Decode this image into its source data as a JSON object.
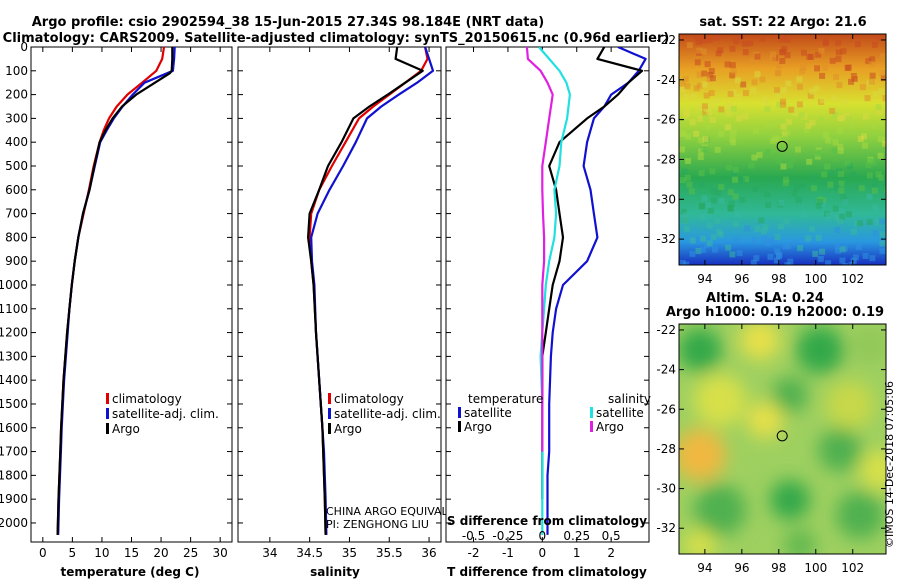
{
  "title_lines": [
    "Argo profile: csio 2902594_38 15-Jun-2015 27.34S 98.184E (NRT data)",
    "Climatology: CARS2009. Satellite-adjusted climatology: synTS_20150615.nc (0.96d earlier)"
  ],
  "colors": {
    "climatology": "#e00000",
    "satellite": "#1010d0",
    "argo": "#000000",
    "cyan": "#20e0e0",
    "magenta": "#e020e0"
  },
  "chart_data": [
    {
      "id": "temperature",
      "type": "line",
      "xlabel": "temperature (deg C)",
      "ylabel": "",
      "xlim": [
        -2,
        32
      ],
      "ylim": [
        2080,
        0
      ],
      "xticks": [
        0,
        5,
        10,
        15,
        20,
        25,
        30
      ],
      "yticks": [
        0,
        100,
        200,
        300,
        400,
        500,
        600,
        700,
        800,
        900,
        1000,
        1100,
        1200,
        1300,
        1400,
        1500,
        1600,
        1700,
        1800,
        1900,
        2000
      ],
      "legend": [
        "climatology",
        "satellite-adj. clim.",
        "Argo"
      ],
      "series": [
        {
          "name": "climatology",
          "color": "climatology",
          "x": [
            20.5,
            20.2,
            19.2,
            16.8,
            14.3,
            12.5,
            11.2,
            10.3,
            9.6,
            8.6,
            7.8,
            6.9,
            6.0,
            5.4,
            4.9,
            4.5,
            4.1,
            3.8,
            3.5,
            3.3,
            3.1,
            2.95,
            2.8,
            2.65,
            2.5
          ],
          "y": [
            0,
            50,
            100,
            150,
            200,
            250,
            300,
            350,
            400,
            500,
            600,
            700,
            800,
            900,
            1000,
            1100,
            1200,
            1300,
            1400,
            1500,
            1600,
            1700,
            1800,
            1900,
            2050
          ]
        },
        {
          "name": "satellite-adj. clim.",
          "color": "satellite",
          "x": [
            22.3,
            22.2,
            22.0,
            17.2,
            15.2,
            13.5,
            12.0,
            10.8,
            9.7,
            8.8,
            7.9,
            6.8,
            6.0,
            5.4,
            4.9,
            4.5,
            4.2,
            3.9,
            3.6,
            3.4,
            3.2,
            3.05,
            2.9,
            2.75,
            2.6
          ],
          "y": [
            0,
            50,
            100,
            150,
            200,
            250,
            300,
            350,
            400,
            500,
            600,
            700,
            800,
            900,
            1000,
            1100,
            1200,
            1300,
            1400,
            1500,
            1600,
            1700,
            1800,
            1900,
            2050
          ]
        },
        {
          "name": "Argo",
          "color": "argo",
          "x": [
            21.9,
            21.9,
            21.8,
            21.5,
            15.8,
            13.4,
            11.8,
            10.6,
            9.6,
            8.7,
            7.9,
            6.8,
            6.0,
            5.4,
            4.9,
            4.5,
            4.1,
            3.8,
            3.5,
            3.3,
            3.1,
            2.95,
            2.8,
            2.65,
            2.5
          ],
          "y": [
            0,
            50,
            100,
            110,
            200,
            250,
            300,
            350,
            400,
            500,
            600,
            700,
            800,
            900,
            1000,
            1100,
            1200,
            1300,
            1400,
            1500,
            1600,
            1700,
            1800,
            1900,
            2050
          ]
        }
      ]
    },
    {
      "id": "salinity",
      "type": "line",
      "xlabel": "salinity",
      "ylabel": "",
      "xlim": [
        33.6,
        36.15
      ],
      "ylim": [
        2080,
        0
      ],
      "xticks": [
        34,
        34.5,
        35,
        35.5,
        36
      ],
      "xticklabels": [
        "34",
        "34.5",
        "35",
        "35.5",
        "36"
      ],
      "legend": [
        "climatology",
        "satellite-adj. clim.",
        "Argo"
      ],
      "footnote_lines": [
        "CHINA ARGO EQUIVALENT",
        "PI: ZENGHONG LIU"
      ],
      "series": [
        {
          "name": "climatology",
          "color": "climatology",
          "x": [
            35.95,
            35.98,
            35.9,
            35.7,
            35.5,
            35.3,
            35.12,
            34.95,
            34.78,
            34.62,
            34.52,
            34.5,
            34.52,
            34.55,
            34.58,
            34.6,
            34.62,
            34.64,
            34.66,
            34.67,
            34.68,
            34.69,
            34.7
          ],
          "y": [
            0,
            50,
            100,
            150,
            200,
            250,
            300,
            400,
            500,
            600,
            700,
            800,
            900,
            1000,
            1200,
            1300,
            1400,
            1500,
            1600,
            1700,
            1800,
            1900,
            2050
          ]
        },
        {
          "name": "satellite-adj. clim.",
          "color": "satellite",
          "x": [
            35.95,
            36.0,
            36.05,
            35.85,
            35.62,
            35.4,
            35.22,
            35.08,
            34.92,
            34.75,
            34.6,
            34.52,
            34.53,
            34.56,
            34.58,
            34.6,
            34.62,
            34.64,
            34.66,
            34.68,
            34.69,
            34.7,
            34.71
          ],
          "y": [
            0,
            50,
            100,
            150,
            200,
            250,
            300,
            400,
            500,
            600,
            700,
            800,
            900,
            1000,
            1200,
            1300,
            1400,
            1500,
            1600,
            1700,
            1800,
            1900,
            2050
          ]
        },
        {
          "name": "Argo",
          "color": "argo",
          "x": [
            35.6,
            35.58,
            35.92,
            35.7,
            35.48,
            35.25,
            35.05,
            34.9,
            34.73,
            34.62,
            34.5,
            34.48,
            34.52,
            34.55,
            34.58,
            34.6,
            34.62,
            34.64,
            34.66,
            34.67,
            34.68,
            34.69,
            34.7
          ],
          "y": [
            0,
            50,
            100,
            150,
            200,
            250,
            300,
            400,
            500,
            600,
            700,
            800,
            900,
            1000,
            1200,
            1300,
            1400,
            1500,
            1600,
            1700,
            1800,
            1900,
            2050
          ]
        }
      ]
    },
    {
      "id": "difference",
      "type": "line",
      "xlabel": "T difference from climatology",
      "x2label": "S difference from climatology",
      "xlim": [
        -2.8,
        3.1
      ],
      "ylim": [
        2080,
        0
      ],
      "xticks": [
        -2,
        -1,
        0,
        1,
        2
      ],
      "x2ticks": [
        -0.5,
        -0.25,
        0,
        0.25,
        0.5
      ],
      "x2ticklabels": [
        "-0.5",
        "-0.25",
        "0",
        "0.25",
        "0.5"
      ],
      "legend_left_title": "temperature",
      "legend_right_title": "salinity",
      "legend_left": [
        "satellite",
        "Argo"
      ],
      "legend_right": [
        "satellite",
        "Argo"
      ],
      "series": [
        {
          "name": "T satellite",
          "color": "satellite",
          "x": [
            2.2,
            3.0,
            2.8,
            2.5,
            2.0,
            1.8,
            1.5,
            1.3,
            1.2,
            1.4,
            1.5,
            1.6,
            1.3,
            0.6,
            0.4,
            0.3,
            0.25,
            0.2,
            0.2,
            0.2,
            0.15,
            0.15,
            0.15
          ],
          "y": [
            0,
            50,
            100,
            150,
            200,
            250,
            300,
            400,
            500,
            600,
            700,
            800,
            900,
            1000,
            1100,
            1200,
            1300,
            1500,
            1600,
            1700,
            1800,
            1900,
            2050
          ]
        },
        {
          "name": "T Argo",
          "color": "argo",
          "x": [
            1.8,
            1.6,
            2.9,
            2.5,
            2.2,
            1.8,
            1.3,
            0.5,
            0.2,
            0.4,
            0.5,
            0.6,
            0.5,
            0.3,
            0.2,
            0.1,
            0.0,
            0.0,
            0.0,
            0.0,
            0.0,
            0.0
          ],
          "y": [
            0,
            50,
            100,
            150,
            200,
            250,
            300,
            400,
            500,
            600,
            700,
            800,
            900,
            1000,
            1100,
            1200,
            1300,
            1500,
            1600,
            1700,
            1800,
            1900
          ]
        },
        {
          "name": "S satellite",
          "color": "cyan",
          "x": [
            -0.1,
            0.2,
            0.5,
            0.7,
            0.8,
            0.72,
            0.55,
            0.5,
            0.35,
            0.4,
            0.35,
            0.2,
            0.1,
            0.05,
            0.0,
            -0.05,
            0.0,
            0.0,
            0.0,
            0.0
          ],
          "y": [
            0,
            50,
            100,
            150,
            200,
            300,
            400,
            500,
            600,
            700,
            800,
            900,
            1000,
            1100,
            1200,
            1300,
            1500,
            1600,
            1700,
            2050
          ]
        },
        {
          "name": "S Argo",
          "color": "magenta",
          "x": [
            -0.45,
            -0.42,
            -0.05,
            0.15,
            0.3,
            0.2,
            0.1,
            0.0,
            0.0,
            0.02,
            0.05,
            0.05,
            0.0,
            0.0,
            0.0,
            0.0,
            0.0,
            0.0
          ],
          "y": [
            0,
            50,
            100,
            150,
            200,
            300,
            400,
            500,
            600,
            700,
            800,
            900,
            1000,
            1100,
            1200,
            1300,
            1500,
            1700
          ]
        }
      ]
    },
    {
      "id": "sst_map",
      "type": "heatmap",
      "title": "sat. SST: 22 Argo: 21.6",
      "xticks": [
        94,
        96,
        98,
        100,
        102
      ],
      "yticks": [
        -22,
        -24,
        -26,
        -28,
        -30,
        -32
      ],
      "xlim": [
        92.6,
        103.8
      ],
      "ylim": [
        -33.3,
        -21.7
      ],
      "marker": {
        "lon": 98.184,
        "lat": -27.34
      }
    },
    {
      "id": "sla_map",
      "type": "heatmap",
      "title_lines": [
        "Altim. SLA: 0.24",
        "Argo h1000: 0.19 h2000: 0.19"
      ],
      "xticks": [
        94,
        96,
        98,
        100,
        102
      ],
      "yticks": [
        -22,
        -24,
        -26,
        -28,
        -30,
        -32
      ],
      "xlim": [
        92.6,
        103.8
      ],
      "ylim": [
        -33.3,
        -21.7
      ],
      "marker": {
        "lon": 98.184,
        "lat": -27.34
      }
    }
  ],
  "footer": "©IMOS 14-Dec-2018 07:05:06"
}
